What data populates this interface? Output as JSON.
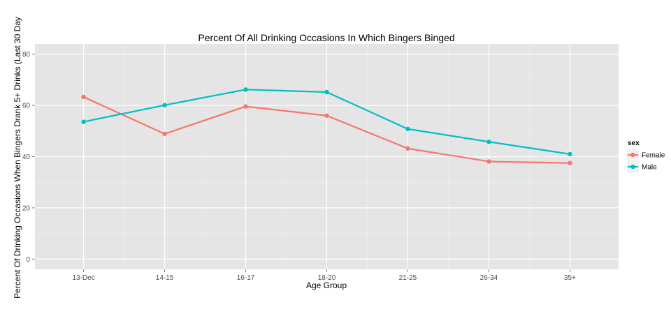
{
  "chart_data": {
    "type": "line",
    "title": "Percent Of All Drinking Occasions In Which Bingers Binged",
    "xlabel": "Age Group",
    "ylabel": "Percent Of Drinking Occasions When Bingers Drank 5+ Drinks (Last 30 Day",
    "categories": [
      "13-Dec",
      "14-15",
      "16-17",
      "18-20",
      "21-25",
      "26-34",
      "35+"
    ],
    "ylim": [
      -4,
      84
    ],
    "yticks": [
      0,
      20,
      40,
      60,
      80
    ],
    "ytick_labels": [
      "0",
      "20",
      "40",
      "60",
      "80"
    ],
    "grid": true,
    "legend": {
      "title": "sex",
      "position": "right"
    },
    "series": [
      {
        "name": "Female",
        "color": "#f8766d",
        "values": [
          63.3,
          48.9,
          59.6,
          56.0,
          43.2,
          38.1,
          37.5
        ]
      },
      {
        "name": "Male",
        "color": "#00bfc4",
        "values": [
          53.6,
          60.1,
          66.2,
          65.2,
          50.8,
          45.8,
          41.0
        ]
      }
    ]
  }
}
